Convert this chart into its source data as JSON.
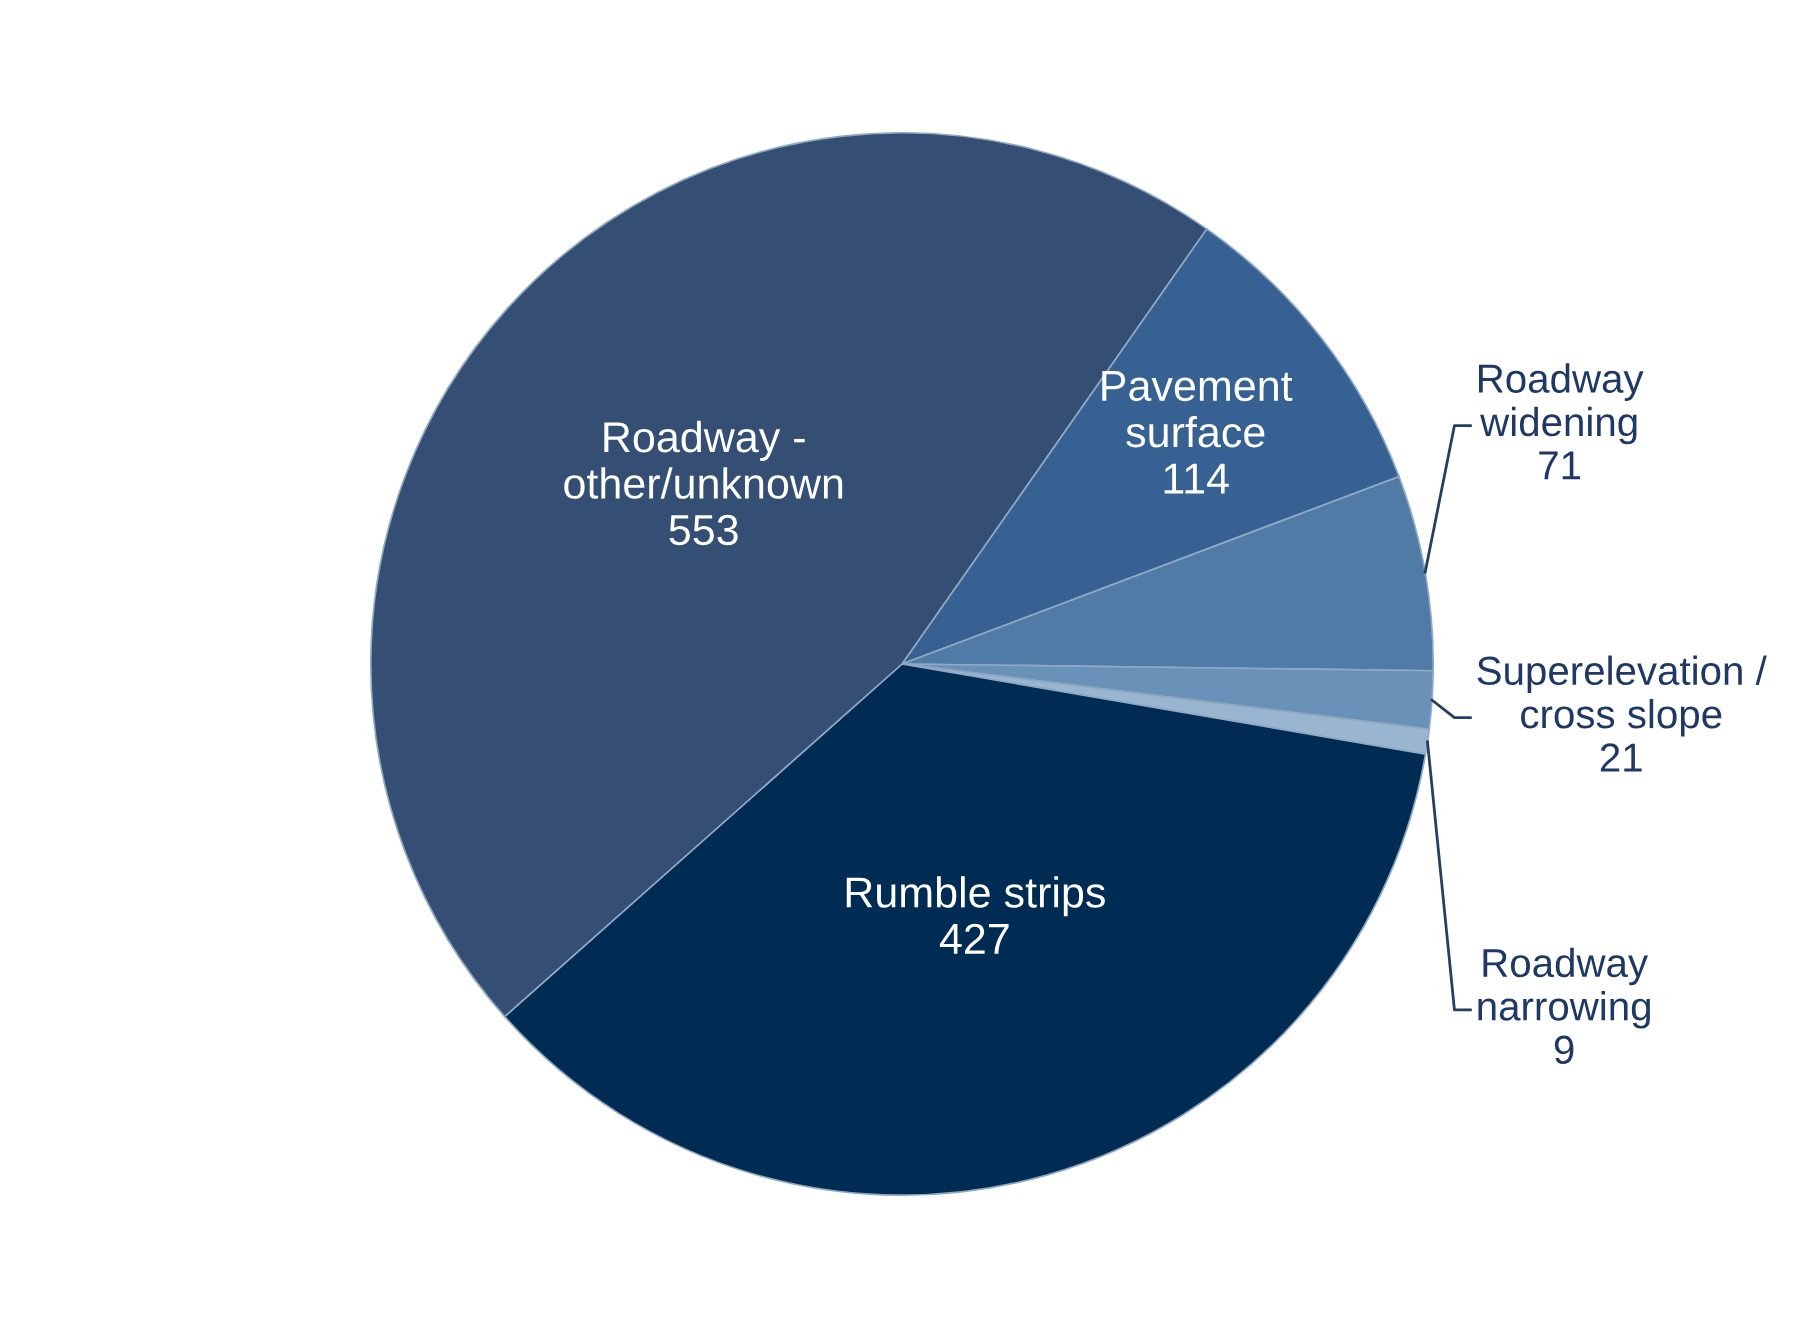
{
  "chart_data": {
    "type": "pie",
    "categories": [
      "Pavement\nsurface",
      "Roadway\nwidening",
      "Superelevation /\ncross slope",
      "Roadway\nnarrowing",
      "Rumble strips",
      "Roadway -\nother/unknown"
    ],
    "values": [
      114,
      71,
      21,
      9,
      427,
      553
    ],
    "colors": [
      "#376193",
      "#4f7ba6",
      "#6a92b8",
      "#9ab5cf",
      "#002b53",
      "#354e73"
    ],
    "data_labels": true,
    "legend": false
  }
}
